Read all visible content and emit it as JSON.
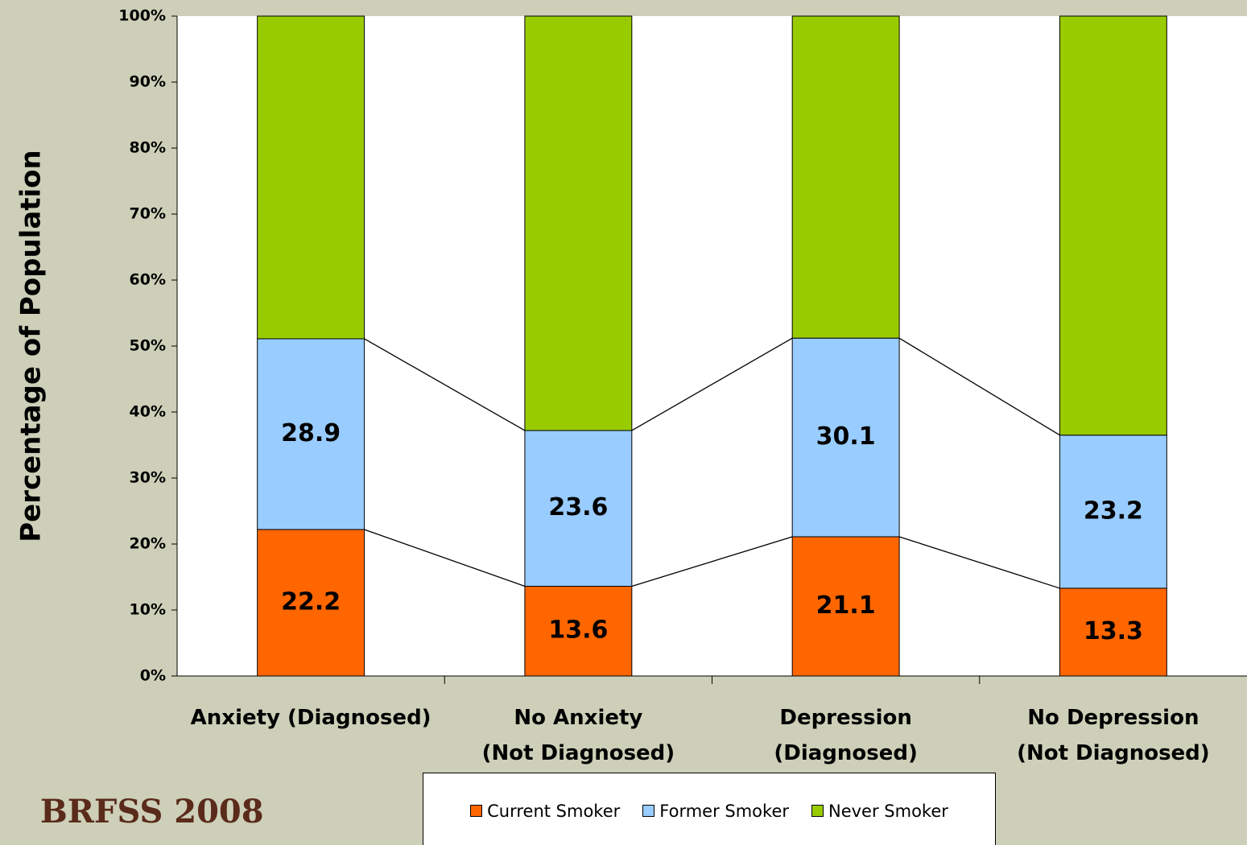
{
  "chart_data": {
    "type": "stacked_bar",
    "y_axis_label": "Percentage of Population",
    "categories": [
      "Anxiety (Diagnosed)",
      "No Anxiety\n (Not Diagnosed)",
      "Depression\n(Diagnosed)",
      "No Depression\n (Not Diagnosed)"
    ],
    "series": [
      {
        "name": "Current Smoker",
        "color": "#ff6600",
        "values": [
          22.2,
          13.6,
          21.1,
          13.3
        ],
        "show_labels": true
      },
      {
        "name": "Former Smoker",
        "color": "#99ccff",
        "values": [
          28.9,
          23.6,
          30.1,
          23.2
        ],
        "show_labels": true
      },
      {
        "name": "Never Smoker",
        "color": "#99cc00",
        "values": [
          48.9,
          62.8,
          48.8,
          63.5
        ],
        "show_labels": false
      }
    ],
    "ylim": [
      0,
      100
    ],
    "yticks": [
      {
        "value": 0,
        "label": "0%"
      },
      {
        "value": 10,
        "label": "10%"
      },
      {
        "value": 20,
        "label": "20%"
      },
      {
        "value": 30,
        "label": "30%"
      },
      {
        "value": 40,
        "label": "40%"
      },
      {
        "value": 50,
        "label": "50%"
      },
      {
        "value": 60,
        "label": "60%"
      },
      {
        "value": 70,
        "label": "70%"
      },
      {
        "value": 80,
        "label": "80%"
      },
      {
        "value": 90,
        "label": "90%"
      },
      {
        "value": 100,
        "label": "100%"
      }
    ],
    "series_lines": true,
    "grid": false,
    "legend_position": "bottom",
    "source": "BRFSS 2008"
  }
}
